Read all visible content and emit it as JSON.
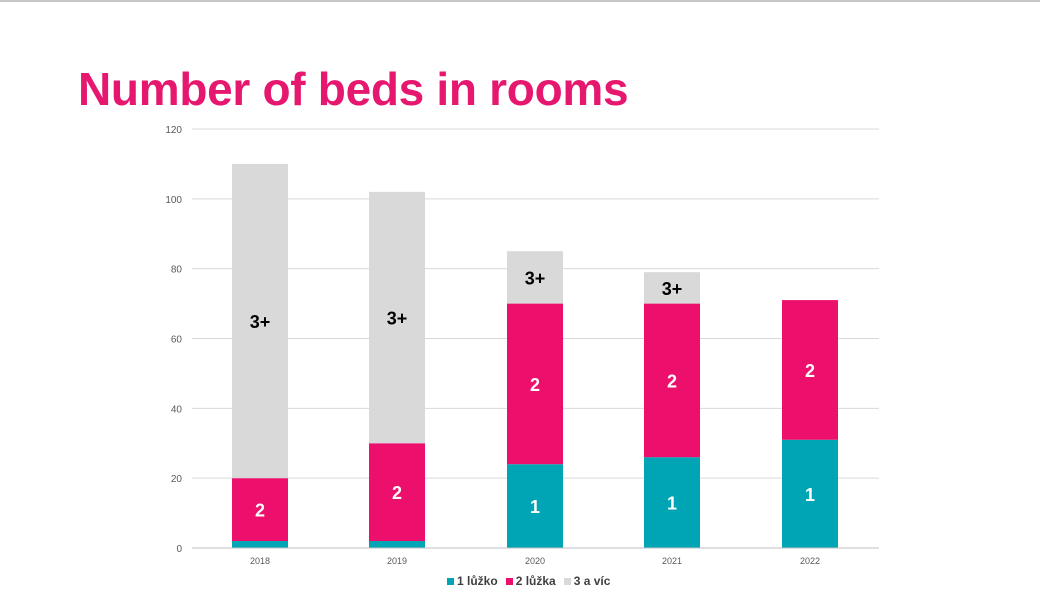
{
  "title": "Number of beds in rooms",
  "chart_data": {
    "type": "bar",
    "stacked": true,
    "categories": [
      "2018",
      "2019",
      "2020",
      "2021",
      "2022"
    ],
    "series": [
      {
        "name": "1 lůžko",
        "color": "#00a5b5",
        "values": [
          2,
          2,
          24,
          26,
          31
        ],
        "labels": [
          "",
          "",
          "1",
          "1",
          "1"
        ],
        "label_color": "#ffffff"
      },
      {
        "name": "2 lůžka",
        "color": "#ed0f6c",
        "values": [
          18,
          28,
          46,
          44,
          40
        ],
        "labels": [
          "2",
          "2",
          "2",
          "2",
          "2"
        ],
        "label_color": "#ffffff"
      },
      {
        "name": "3 a víc",
        "color": "#d9d9d9",
        "values": [
          90,
          72,
          15,
          9,
          0
        ],
        "labels": [
          "3+",
          "3+",
          "3+",
          "3+",
          ""
        ],
        "label_color": "#000000"
      }
    ],
    "ylim": [
      0,
      120
    ],
    "yticks": [
      "0",
      "20",
      "40",
      "60",
      "80",
      "100",
      "120"
    ],
    "grid": true,
    "legend_position": "bottom"
  }
}
